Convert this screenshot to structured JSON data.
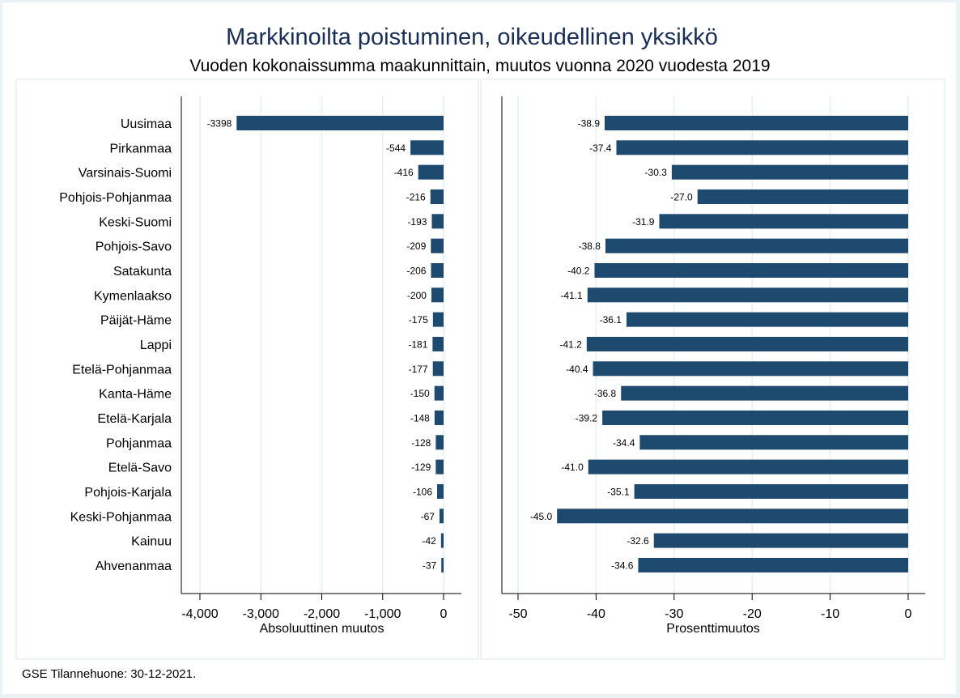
{
  "chart_data": [
    {
      "type": "bar",
      "orientation": "horizontal",
      "panel": "left",
      "categories": [
        "Uusimaa",
        "Pirkanmaa",
        "Varsinais-Suomi",
        "Pohjois-Pohjanmaa",
        "Keski-Suomi",
        "Pohjois-Savo",
        "Satakunta",
        "Kymenlaakso",
        "Päijät-Häme",
        "Lappi",
        "Etelä-Pohjanmaa",
        "Kanta-Häme",
        "Etelä-Karjala",
        "Pohjanmaa",
        "Etelä-Savo",
        "Pohjois-Karjala",
        "Keski-Pohjanmaa",
        "Kainuu",
        "Ahvenanmaa"
      ],
      "values": [
        -3398,
        -544,
        -416,
        -216,
        -193,
        -209,
        -206,
        -200,
        -175,
        -181,
        -177,
        -150,
        -148,
        -128,
        -129,
        -106,
        -67,
        -42,
        -37
      ],
      "value_labels": [
        "-3398",
        "-544",
        "-416",
        "-216",
        "-193",
        "-209",
        "-206",
        "-200",
        "-175",
        "-181",
        "-177",
        "-150",
        "-148",
        "-128",
        "-129",
        "-106",
        "-67",
        "-42",
        "-37"
      ],
      "xlabel": "Absoluuttinen muutos",
      "ylabel": "",
      "xlim": [
        -4300,
        300
      ],
      "xticks": [
        -4000,
        -3000,
        -2000,
        -1000,
        0
      ],
      "xtick_labels": [
        "-4,000",
        "-3,000",
        "-2,000",
        "-1,000",
        "0"
      ],
      "grid": true,
      "color": "#1f4a70"
    },
    {
      "type": "bar",
      "orientation": "horizontal",
      "panel": "right",
      "categories": [
        "Uusimaa",
        "Pirkanmaa",
        "Varsinais-Suomi",
        "Pohjois-Pohjanmaa",
        "Keski-Suomi",
        "Pohjois-Savo",
        "Satakunta",
        "Kymenlaakso",
        "Päijät-Häme",
        "Lappi",
        "Etelä-Pohjanmaa",
        "Kanta-Häme",
        "Etelä-Karjala",
        "Pohjanmaa",
        "Etelä-Savo",
        "Pohjois-Karjala",
        "Keski-Pohjanmaa",
        "Kainuu",
        "Ahvenanmaa"
      ],
      "values": [
        -38.9,
        -37.4,
        -30.3,
        -27.0,
        -31.9,
        -38.8,
        -40.2,
        -41.1,
        -36.1,
        -41.2,
        -40.4,
        -36.8,
        -39.2,
        -34.4,
        -41.0,
        -35.1,
        -45.0,
        -32.6,
        -34.6
      ],
      "value_labels": [
        "-38.9",
        "-37.4",
        "-30.3",
        "-27.0",
        "-31.9",
        "-38.8",
        "-40.2",
        "-41.1",
        "-36.1",
        "-41.2",
        "-40.4",
        "-36.8",
        "-39.2",
        "-34.4",
        "-41.0",
        "-35.1",
        "-45.0",
        "-32.6",
        "-34.6"
      ],
      "xlabel": "Prosenttimuutos",
      "ylabel": "",
      "xlim": [
        -52,
        2.3
      ],
      "xticks": [
        -50,
        -40,
        -30,
        -20,
        -10,
        0
      ],
      "xtick_labels": [
        "-50",
        "-40",
        "-30",
        "-20",
        "-10",
        "0"
      ],
      "grid": true,
      "color": "#1f4a70"
    }
  ],
  "title": "Markkinoilta poistuminen, oikeudellinen yksikkö",
  "subtitle": "Vuoden kokonaissumma maakunnittain, muutos vuonna 2020 vuodesta 2019",
  "note": "GSE Tilannehuone: 30-12-2021.",
  "colors": {
    "title": "#1a2e55",
    "bar": "#1f4a70",
    "grid": "#e6eff2",
    "panel_border": "#e6f0f2",
    "background": "#eaf2f3"
  }
}
